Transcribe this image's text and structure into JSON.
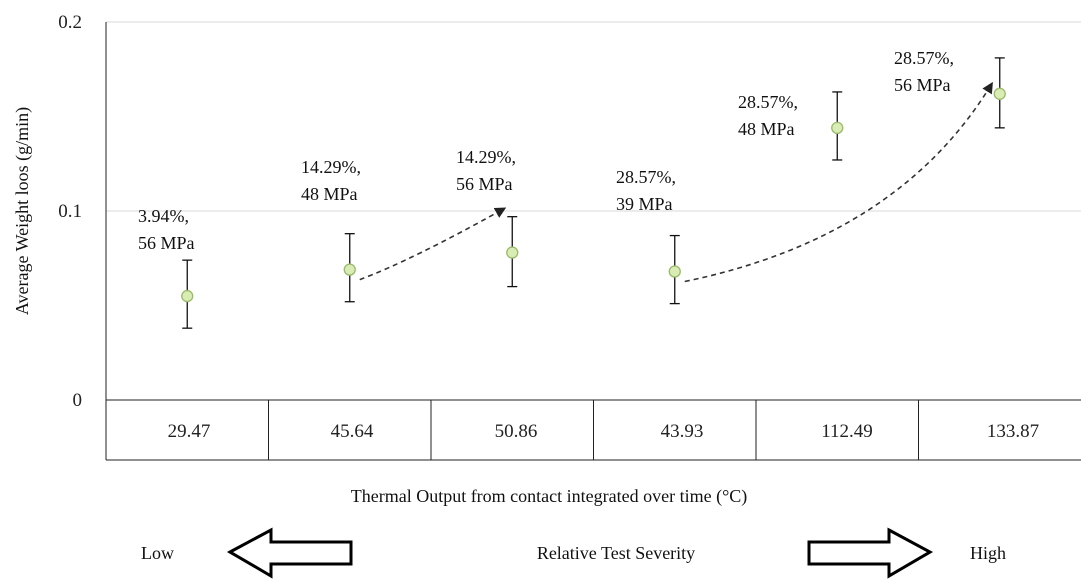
{
  "chart_data": {
    "type": "scatter",
    "xlabel": "Thermal  Output from contact integrated  over time  (°C)",
    "ylabel": "Average  Weight  loos (g/min)",
    "ylim": [
      0,
      0.2
    ],
    "yticks": [
      "0",
      "0.1",
      "0.2"
    ],
    "categories": [
      "29.47",
      "45.64",
      "50.86",
      "43.93",
      "112.49",
      "133.87"
    ],
    "values": [
      0.055,
      0.069,
      0.078,
      0.068,
      0.144,
      0.162
    ],
    "error_low": [
      0.038,
      0.052,
      0.06,
      0.051,
      0.127,
      0.144
    ],
    "error_high": [
      0.074,
      0.088,
      0.097,
      0.087,
      0.163,
      0.181
    ],
    "annotations": [
      [
        "3.94%,",
        "56 MPa"
      ],
      [
        "14.29%,",
        "48 MPa"
      ],
      [
        "14.29%,",
        "56 MPa"
      ],
      [
        "28.57%,",
        "39 MPa"
      ],
      [
        "28.57%,",
        "48 MPa"
      ],
      [
        "28.57%,",
        "56 MPa"
      ]
    ],
    "trend_arrows": [
      [
        1,
        2
      ],
      [
        3,
        5
      ]
    ],
    "grid": "horizontal",
    "marker_color": "#d9ecb4",
    "marker_edge": "#9ab96a"
  },
  "severity": {
    "low": "Low",
    "label": "Relative  Test Severity",
    "high": "High"
  }
}
